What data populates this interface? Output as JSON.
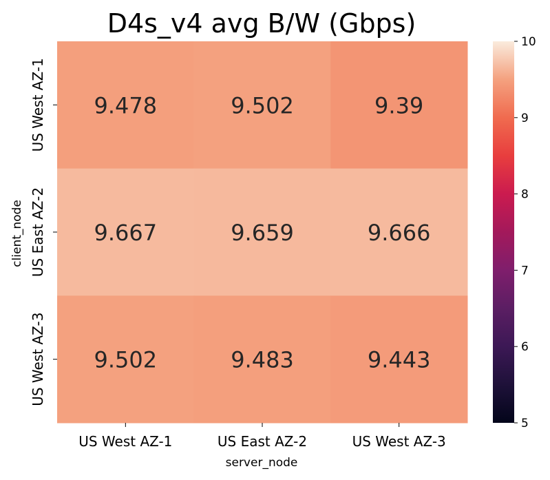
{
  "chart_data": {
    "type": "heatmap",
    "title": "D4s_v4 avg B/W (Gbps)",
    "xlabel": "server_node",
    "ylabel": "client_node",
    "x_categories": [
      "US West AZ-1",
      "US East AZ-2",
      "US West AZ-3"
    ],
    "y_categories": [
      "US West AZ-1",
      "US East AZ-2",
      "US West AZ-3"
    ],
    "values": [
      [
        9.478,
        9.502,
        9.39
      ],
      [
        9.667,
        9.659,
        9.666
      ],
      [
        9.502,
        9.483,
        9.443
      ]
    ],
    "value_labels": [
      [
        "9.478",
        "9.502",
        "9.39"
      ],
      [
        "9.667",
        "9.659",
        "9.666"
      ],
      [
        "9.502",
        "9.483",
        "9.443"
      ]
    ],
    "colorbar": {
      "min": 5,
      "max": 10,
      "ticks": [
        5,
        6,
        7,
        8,
        9,
        10
      ],
      "colormap": "rocket"
    }
  }
}
